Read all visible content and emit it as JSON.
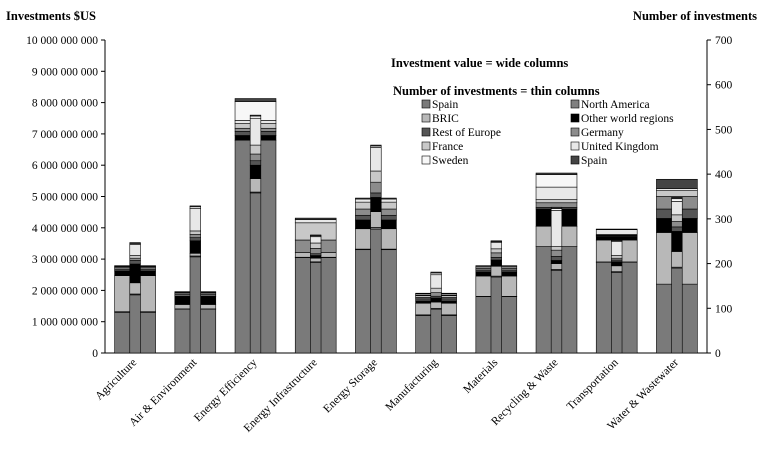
{
  "chart_data": {
    "type": "bar",
    "left_axis_label": "Investments $US",
    "right_axis_label": "Number of investments",
    "notes": [
      "Investment value = wide columns",
      "Number of investments = thin columns"
    ],
    "left_ylim": [
      0,
      10000000000
    ],
    "left_ticks": [
      0,
      1000000000,
      2000000000,
      3000000000,
      4000000000,
      5000000000,
      6000000000,
      7000000000,
      8000000000,
      9000000000,
      10000000000
    ],
    "left_tick_labels": [
      "0",
      "1 000 000 000",
      "2 000 000 000",
      "3 000 000 000",
      "4 000 000 000",
      "5 000 000 000",
      "6 000 000 000",
      "7 000 000 000",
      "8 000 000 000",
      "9 000 000 000",
      "10 000 000 000"
    ],
    "right_ylim": [
      0,
      700
    ],
    "right_ticks": [
      0,
      100,
      200,
      300,
      400,
      500,
      600,
      700
    ],
    "right_tick_labels": [
      "0",
      "100",
      "200",
      "300",
      "400",
      "500",
      "600",
      "700"
    ],
    "grid": false,
    "legend_position": "top-right",
    "categories": [
      "Agriculture",
      "Air & Environment",
      "Energy Efficiency",
      "Energy Infrastructure",
      "Energy Storage",
      "Manufacturing",
      "Materials",
      "Recycling & Waste",
      "Transportation",
      "Water & Wastewater"
    ],
    "value_series": [
      {
        "name": "Spain",
        "color": "#7a7a7a",
        "values": [
          1300000000,
          1400000000,
          6800000000,
          3050000000,
          3300000000,
          1200000000,
          1800000000,
          3400000000,
          2900000000,
          2200000000
        ]
      },
      {
        "name": "North America",
        "color": "#808080",
        "values": [
          20000000,
          10000000,
          0,
          10000000,
          20000000,
          20000000,
          10000000,
          0,
          10000000,
          0
        ]
      },
      {
        "name": "BRIC",
        "color": "#b8b8b8",
        "values": [
          1150000000,
          140000000,
          0,
          150000000,
          650000000,
          370000000,
          650000000,
          650000000,
          700000000,
          1650000000
        ]
      },
      {
        "name": "Other world regions",
        "color": "#000000",
        "values": [
          150000000,
          250000000,
          150000000,
          0,
          280000000,
          70000000,
          130000000,
          550000000,
          100000000,
          450000000
        ]
      },
      {
        "name": "Rest of Europe",
        "color": "#555555",
        "values": [
          60000000,
          20000000,
          130000000,
          0,
          150000000,
          70000000,
          60000000,
          50000000,
          30000000,
          300000000
        ]
      },
      {
        "name": "Germany",
        "color": "#8c8c8c",
        "values": [
          50000000,
          50000000,
          100000000,
          400000000,
          200000000,
          50000000,
          50000000,
          150000000,
          20000000,
          400000000
        ]
      },
      {
        "name": "France",
        "color": "#c8c8c8",
        "values": [
          30000000,
          40000000,
          150000000,
          550000000,
          220000000,
          50000000,
          50000000,
          100000000,
          30000000,
          200000000
        ]
      },
      {
        "name": "United Kingdom",
        "color": "#e8e8e8",
        "values": [
          20000000,
          20000000,
          100000000,
          100000000,
          100000000,
          20000000,
          30000000,
          400000000,
          150000000,
          0
        ]
      },
      {
        "name": "Sweden",
        "color": "#f7f7f7",
        "values": [
          0,
          20000000,
          600000000,
          0,
          0,
          40000000,
          0,
          400000000,
          0,
          50000000
        ]
      },
      {
        "name": "Spain",
        "color": "#444444",
        "values": [
          10000000,
          10000000,
          100000000,
          50000000,
          30000000,
          20000000,
          10000000,
          50000000,
          20000000,
          300000000
        ]
      }
    ],
    "count_series": [
      {
        "name": "Spain",
        "color": "#7a7a7a",
        "values": [
          130,
          215,
          358,
          202,
          277,
          98,
          170,
          185,
          180,
          190
        ]
      },
      {
        "name": "North America",
        "color": "#808080",
        "values": [
          2,
          2,
          2,
          2,
          4,
          2,
          2,
          2,
          2,
          2
        ]
      },
      {
        "name": "BRIC",
        "color": "#b8b8b8",
        "values": [
          25,
          6,
          30,
          8,
          35,
          14,
          22,
          13,
          13,
          35
        ]
      },
      {
        "name": "Other world regions",
        "color": "#000000",
        "values": [
          42,
          28,
          30,
          6,
          32,
          9,
          14,
          7,
          9,
          45
        ]
      },
      {
        "name": "Rest of Europe",
        "color": "#555555",
        "values": [
          8,
          7,
          10,
          4,
          10,
          4,
          6,
          9,
          4,
          10
        ]
      },
      {
        "name": "Germany",
        "color": "#8c8c8c",
        "values": [
          5,
          7,
          15,
          12,
          24,
          8,
          10,
          14,
          4,
          12
        ]
      },
      {
        "name": "France",
        "color": "#c8c8c8",
        "values": [
          6,
          8,
          20,
          12,
          25,
          10,
          9,
          8,
          6,
          15
        ]
      },
      {
        "name": "United Kingdom",
        "color": "#e8e8e8",
        "values": [
          25,
          50,
          60,
          14,
          53,
          30,
          14,
          81,
          31,
          30
        ]
      },
      {
        "name": "Sweden",
        "color": "#f7f7f7",
        "values": [
          2,
          4,
          5,
          2,
          3,
          4,
          2,
          4,
          2,
          6
        ]
      },
      {
        "name": "Spain",
        "color": "#444444",
        "values": [
          2,
          2,
          2,
          2,
          2,
          2,
          2,
          3,
          2,
          3
        ]
      }
    ],
    "legend": [
      {
        "name": "Spain",
        "color": "#7a7a7a"
      },
      {
        "name": "North America",
        "color": "#808080"
      },
      {
        "name": "BRIC",
        "color": "#b8b8b8"
      },
      {
        "name": "Other world regions",
        "color": "#000000"
      },
      {
        "name": "Rest of Europe",
        "color": "#555555"
      },
      {
        "name": "Germany",
        "color": "#8c8c8c"
      },
      {
        "name": "France",
        "color": "#c8c8c8"
      },
      {
        "name": "United Kingdom",
        "color": "#e8e8e8"
      },
      {
        "name": "Sweden",
        "color": "#f7f7f7"
      },
      {
        "name": "Spain",
        "color": "#444444"
      }
    ]
  }
}
